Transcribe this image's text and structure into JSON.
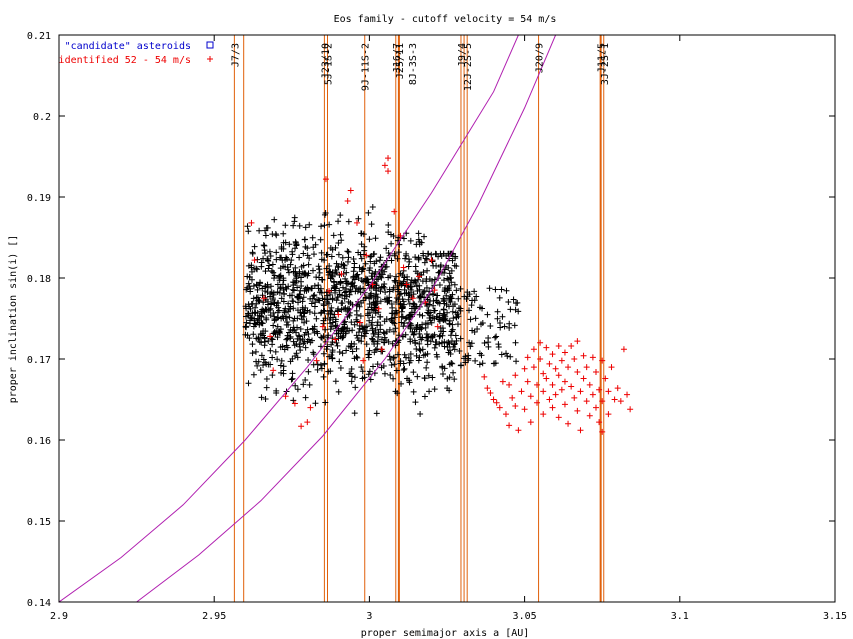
{
  "chart_data": {
    "type": "scatter",
    "title": "Eos family - cutoff velocity = 54 m/s",
    "xlabel": "proper semimajor axis a [AU]",
    "ylabel": "proper inclination sin(i) []",
    "xlim": [
      2.9,
      3.15
    ],
    "ylim": [
      0.14,
      0.21
    ],
    "xticks": [
      2.9,
      2.95,
      3.0,
      3.05,
      3.1,
      3.15
    ],
    "xtick_labels": [
      "2.9",
      "2.95",
      "3",
      "3.05",
      "3.1",
      "3.15"
    ],
    "yticks": [
      0.14,
      0.15,
      0.16,
      0.17,
      0.18,
      0.19,
      0.2,
      0.21
    ],
    "ytick_labels": [
      "0.14",
      "0.15",
      "0.16",
      "0.17",
      "0.18",
      "0.19",
      "0.2",
      "0.21"
    ],
    "grid": false,
    "legend_position": "top-left",
    "series": [
      {
        "name": "\"candidate\" asteroids",
        "marker": "square",
        "color": "#0000cc",
        "points": []
      },
      {
        "name": "identified 52 - 54 m/s",
        "marker": "plus",
        "color": "#ee0000",
        "points": [
          [
            2.962,
            0.1868
          ],
          [
            2.963,
            0.1822
          ],
          [
            2.966,
            0.1775
          ],
          [
            2.968,
            0.1728
          ],
          [
            2.969,
            0.1686
          ],
          [
            2.973,
            0.1654
          ],
          [
            2.976,
            0.1645
          ],
          [
            2.978,
            0.1617
          ],
          [
            2.98,
            0.1622
          ],
          [
            2.981,
            0.164
          ],
          [
            2.983,
            0.1698
          ],
          [
            2.985,
            0.174
          ],
          [
            2.986,
            0.1922
          ],
          [
            2.987,
            0.1784
          ],
          [
            2.989,
            0.1724
          ],
          [
            2.99,
            0.1755
          ],
          [
            2.991,
            0.1805
          ],
          [
            2.993,
            0.1895
          ],
          [
            2.994,
            0.1908
          ],
          [
            2.996,
            0.1868
          ],
          [
            2.997,
            0.1745
          ],
          [
            2.998,
            0.1698
          ],
          [
            2.999,
            0.1828
          ],
          [
            3.001,
            0.1792
          ],
          [
            3.003,
            0.1762
          ],
          [
            3.004,
            0.1712
          ],
          [
            3.005,
            0.1939
          ],
          [
            3.006,
            0.1948
          ],
          [
            3.006,
            0.1932
          ],
          [
            3.008,
            0.1882
          ],
          [
            3.01,
            0.1852
          ],
          [
            3.011,
            0.1813
          ],
          [
            3.012,
            0.1792
          ],
          [
            3.014,
            0.1775
          ],
          [
            3.016,
            0.1802
          ],
          [
            3.018,
            0.177
          ],
          [
            3.02,
            0.1822
          ],
          [
            3.021,
            0.1785
          ],
          [
            3.022,
            0.174
          ],
          [
            3.037,
            0.1678
          ],
          [
            3.038,
            0.1664
          ],
          [
            3.039,
            0.1658
          ],
          [
            3.04,
            0.165
          ],
          [
            3.041,
            0.1646
          ],
          [
            3.042,
            0.164
          ],
          [
            3.043,
            0.1672
          ],
          [
            3.044,
            0.1632
          ],
          [
            3.045,
            0.1668
          ],
          [
            3.045,
            0.1618
          ],
          [
            3.046,
            0.1652
          ],
          [
            3.047,
            0.168
          ],
          [
            3.047,
            0.1642
          ],
          [
            3.048,
            0.1612
          ],
          [
            3.049,
            0.166
          ],
          [
            3.05,
            0.1688
          ],
          [
            3.05,
            0.1638
          ],
          [
            3.051,
            0.1702
          ],
          [
            3.051,
            0.1672
          ],
          [
            3.052,
            0.1654
          ],
          [
            3.052,
            0.1622
          ],
          [
            3.053,
            0.1712
          ],
          [
            3.053,
            0.169
          ],
          [
            3.054,
            0.1668
          ],
          [
            3.054,
            0.1646
          ],
          [
            3.055,
            0.172
          ],
          [
            3.055,
            0.17
          ],
          [
            3.056,
            0.1682
          ],
          [
            3.056,
            0.166
          ],
          [
            3.056,
            0.1632
          ],
          [
            3.057,
            0.1714
          ],
          [
            3.057,
            0.1676
          ],
          [
            3.058,
            0.1694
          ],
          [
            3.058,
            0.165
          ],
          [
            3.059,
            0.1706
          ],
          [
            3.059,
            0.1668
          ],
          [
            3.059,
            0.164
          ],
          [
            3.06,
            0.1688
          ],
          [
            3.06,
            0.1656
          ],
          [
            3.061,
            0.1716
          ],
          [
            3.061,
            0.168
          ],
          [
            3.061,
            0.1628
          ],
          [
            3.062,
            0.1698
          ],
          [
            3.062,
            0.1662
          ],
          [
            3.063,
            0.1708
          ],
          [
            3.063,
            0.1672
          ],
          [
            3.063,
            0.1644
          ],
          [
            3.064,
            0.169
          ],
          [
            3.064,
            0.162
          ],
          [
            3.065,
            0.1716
          ],
          [
            3.065,
            0.1666
          ],
          [
            3.066,
            0.17
          ],
          [
            3.066,
            0.1652
          ],
          [
            3.067,
            0.1722
          ],
          [
            3.067,
            0.1684
          ],
          [
            3.067,
            0.1636
          ],
          [
            3.068,
            0.166
          ],
          [
            3.068,
            0.1612
          ],
          [
            3.069,
            0.1704
          ],
          [
            3.069,
            0.1676
          ],
          [
            3.07,
            0.169
          ],
          [
            3.07,
            0.1648
          ],
          [
            3.071,
            0.1668
          ],
          [
            3.071,
            0.163
          ],
          [
            3.072,
            0.1702
          ],
          [
            3.072,
            0.1656
          ],
          [
            3.073,
            0.1684
          ],
          [
            3.073,
            0.164
          ],
          [
            3.074,
            0.1662
          ],
          [
            3.074,
            0.1622
          ],
          [
            3.075,
            0.1698
          ],
          [
            3.075,
            0.1648
          ],
          [
            3.075,
            0.161
          ],
          [
            3.076,
            0.1676
          ],
          [
            3.077,
            0.166
          ],
          [
            3.077,
            0.1632
          ],
          [
            3.078,
            0.169
          ],
          [
            3.079,
            0.165
          ],
          [
            3.08,
            0.1664
          ],
          [
            3.081,
            0.1648
          ],
          [
            3.082,
            0.1712
          ],
          [
            3.083,
            0.1656
          ],
          [
            3.084,
            0.1638
          ]
        ]
      }
    ],
    "black_points_cloud": {
      "note": "unlabeled black + markers",
      "seed": 20240517,
      "count": 1500,
      "core_xrange": [
        2.96,
        3.028
      ],
      "core_yrange": [
        0.163,
        0.19
      ],
      "tail_xrange": [
        3.028,
        3.048
      ],
      "tail_yrange": [
        0.169,
        0.179
      ]
    },
    "resonances": [
      {
        "label": "J7/3",
        "a": 2.9565,
        "bold": false
      },
      {
        "label": "",
        "a": 2.9595,
        "bold": false
      },
      {
        "label": "J23/10",
        "a": 2.9855,
        "bold": false
      },
      {
        "label": "5J-1S-2",
        "a": 2.9865,
        "bold": false
      },
      {
        "label": "9J-11S-2",
        "a": 2.9985,
        "bold": false
      },
      {
        "label": "J16/7",
        "a": 3.0085,
        "bold": false
      },
      {
        "label": "J25/11",
        "a": 3.0095,
        "bold": true
      },
      {
        "label": "8J-3S-3",
        "a": 3.0095,
        "bold": false
      },
      {
        "label": "J9/4",
        "a": 3.0295,
        "bold": false
      },
      {
        "label": "",
        "a": 3.0305,
        "bold": false
      },
      {
        "label": "12J-2S-5",
        "a": 3.0315,
        "bold": false
      },
      {
        "label": "J20/9",
        "a": 3.0545,
        "bold": false
      },
      {
        "label": "J11/5",
        "a": 3.0745,
        "bold": true
      },
      {
        "label": "3J-2S-1",
        "a": 3.0755,
        "bold": false
      }
    ],
    "secular_curves": [
      {
        "name": "curve1",
        "points": [
          [
            2.9,
            0.14
          ],
          [
            2.92,
            0.1455
          ],
          [
            2.94,
            0.152
          ],
          [
            2.96,
            0.16
          ],
          [
            2.98,
            0.169
          ],
          [
            3.0,
            0.179
          ],
          [
            3.02,
            0.1905
          ],
          [
            3.04,
            0.203
          ],
          [
            3.048,
            0.21
          ]
        ]
      },
      {
        "name": "curve2",
        "points": [
          [
            2.925,
            0.14
          ],
          [
            2.945,
            0.1458
          ],
          [
            2.965,
            0.1525
          ],
          [
            2.985,
            0.1605
          ],
          [
            3.005,
            0.17
          ],
          [
            3.02,
            0.1785
          ],
          [
            3.035,
            0.189
          ],
          [
            3.05,
            0.201
          ],
          [
            3.06,
            0.21
          ]
        ]
      }
    ],
    "colors": {
      "resonance_line": "#e0600a",
      "secular_curve": "#b020b0",
      "cloud": "#000000",
      "identified": "#ee0000",
      "candidate": "#0000cc"
    }
  }
}
